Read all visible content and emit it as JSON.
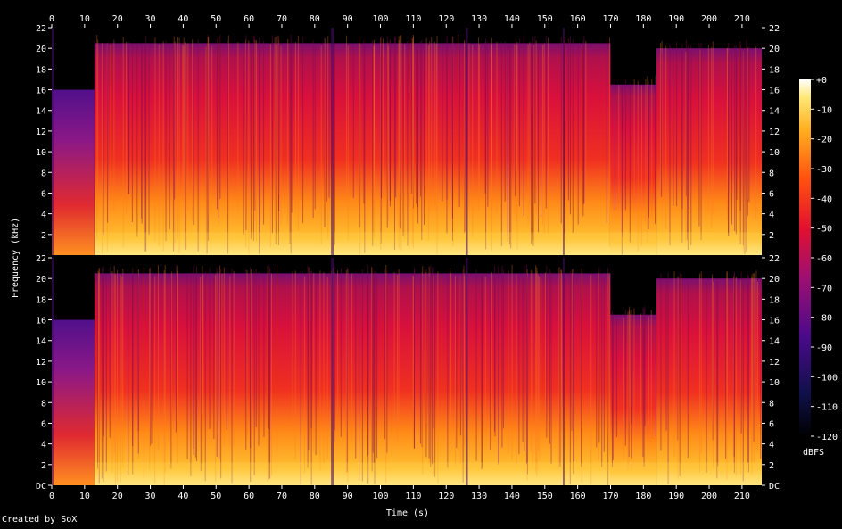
{
  "chart_data": {
    "type": "heatmap",
    "xlabel": "Time (s)",
    "ylabel": "Frequency (kHz)",
    "colorbar_label": "dBFS",
    "credit": "Created by SoX",
    "x_range": [
      0,
      216
    ],
    "y_range_khz": [
      0,
      22
    ],
    "x_ticks": [
      "0",
      "10",
      "20",
      "30",
      "40",
      "50",
      "60",
      "70",
      "80",
      "90",
      "100",
      "110",
      "120",
      "130",
      "140",
      "150",
      "160",
      "170",
      "180",
      "190",
      "200",
      "210"
    ],
    "y_ticks": [
      "DC",
      "2",
      "4",
      "6",
      "8",
      "10",
      "12",
      "14",
      "16",
      "18",
      "20",
      "22"
    ],
    "colorbar_ticks": [
      "+0",
      "-10",
      "-20",
      "-30",
      "-40",
      "-50",
      "-60",
      "-70",
      "-80",
      "-90",
      "-100",
      "-110",
      "-120"
    ],
    "colorbar_range_db": [
      -120,
      0
    ],
    "colors": {
      "background": "#000000",
      "low": "#000000",
      "mid_low": "#3a0a7a",
      "mid": "#d0103a",
      "mid_high": "#ff5010",
      "high": "#ffd040",
      "peak": "#ffffff"
    },
    "channels": [
      {
        "name": "channel 1",
        "segments": [
          {
            "t": [
              0,
              13
            ],
            "top_khz": 16,
            "level": "low"
          },
          {
            "t": [
              13,
              27
            ],
            "top_khz": 20.5,
            "level": "high"
          },
          {
            "t": [
              27,
              85
            ],
            "top_khz": 20.5,
            "level": "high"
          },
          {
            "t": [
              85,
              126
            ],
            "top_khz": 20.5,
            "level": "high"
          },
          {
            "t": [
              126,
              170
            ],
            "top_khz": 20.5,
            "level": "high"
          },
          {
            "t": [
              170,
              184
            ],
            "top_khz": 16.5,
            "level": "mid"
          },
          {
            "t": [
              184,
              216
            ],
            "top_khz": 20,
            "level": "high"
          }
        ]
      },
      {
        "name": "channel 2",
        "segments": [
          {
            "t": [
              0,
              13
            ],
            "top_khz": 16,
            "level": "low"
          },
          {
            "t": [
              13,
              27
            ],
            "top_khz": 20.5,
            "level": "high"
          },
          {
            "t": [
              27,
              85
            ],
            "top_khz": 20.5,
            "level": "high"
          },
          {
            "t": [
              85,
              126
            ],
            "top_khz": 20.5,
            "level": "high"
          },
          {
            "t": [
              126,
              170
            ],
            "top_khz": 20.5,
            "level": "high"
          },
          {
            "t": [
              170,
              184
            ],
            "top_khz": 16.5,
            "level": "mid"
          },
          {
            "t": [
              184,
              216
            ],
            "top_khz": 20,
            "level": "high"
          }
        ]
      }
    ]
  }
}
